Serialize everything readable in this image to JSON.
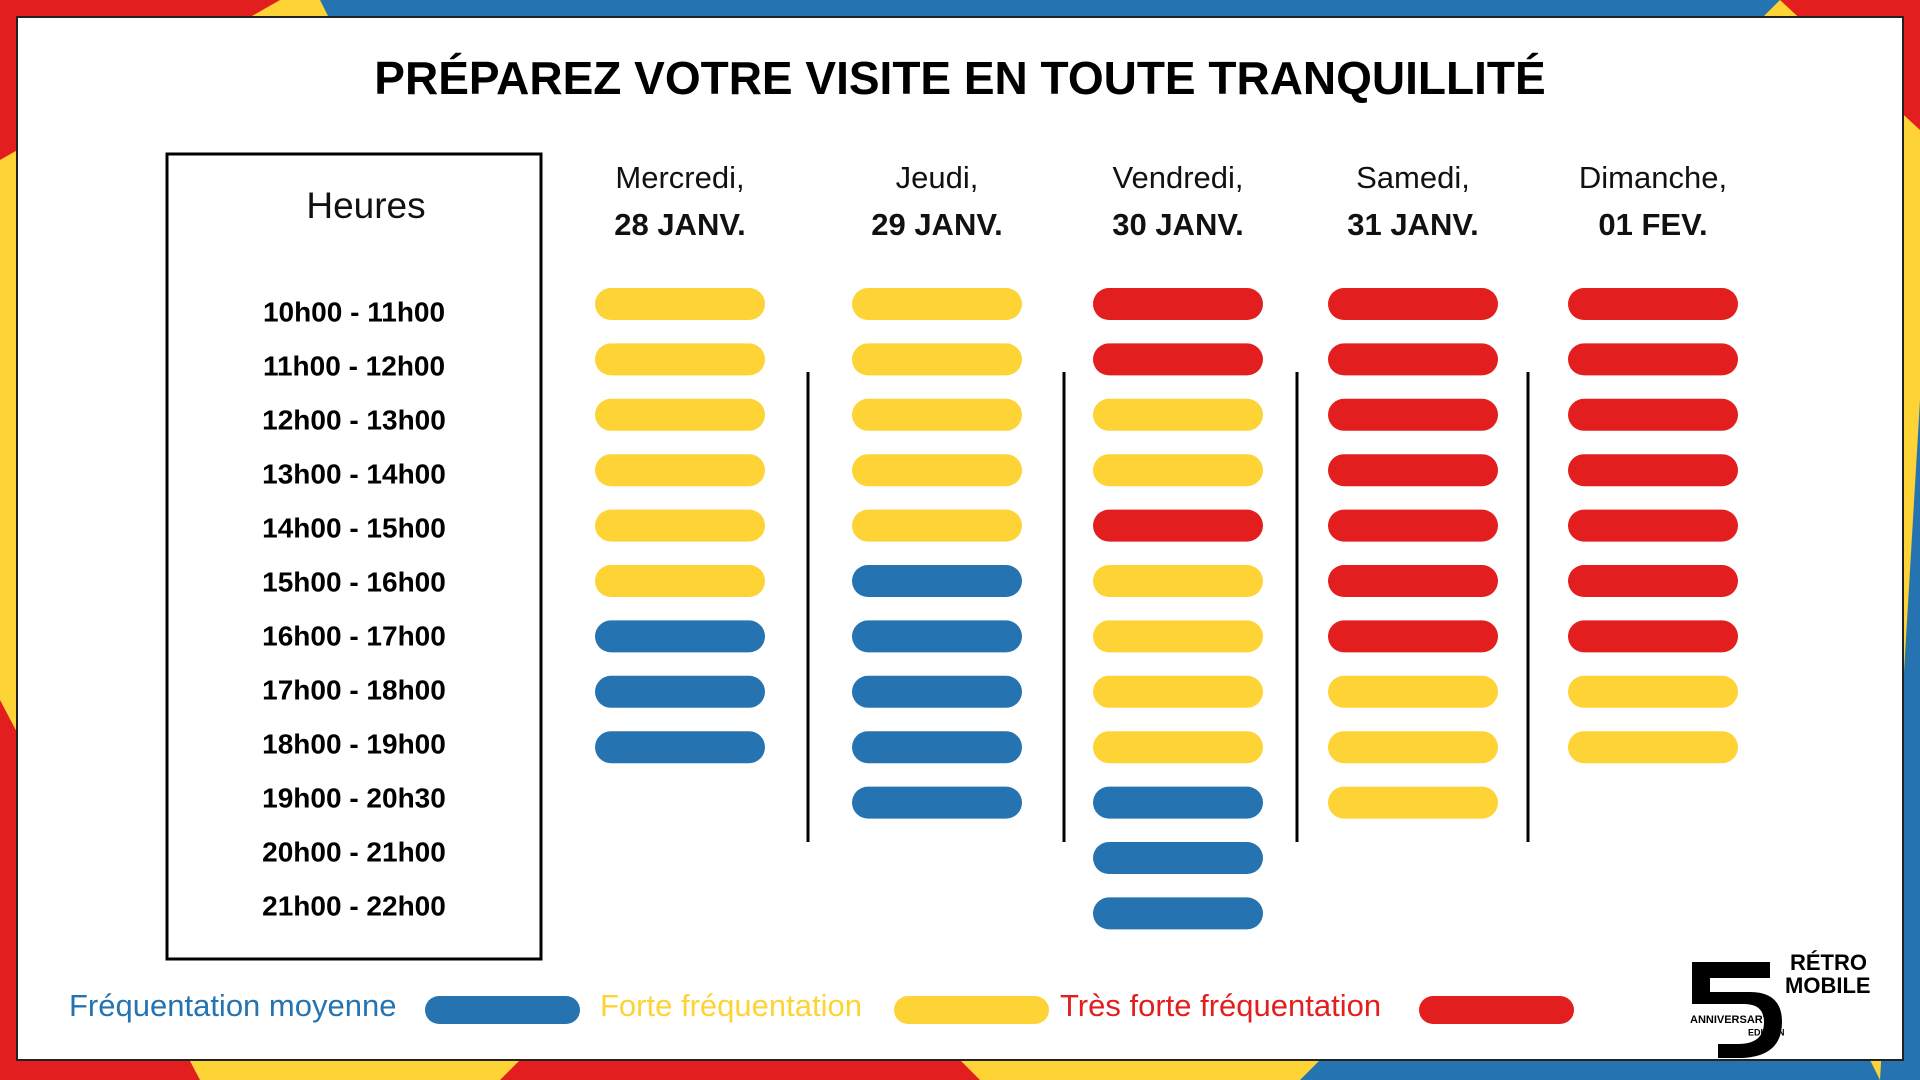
{
  "header": {
    "title": "PRÉPAREZ VOTRE VISITE EN TOUTE TRANQUILLITÉ"
  },
  "hours": {
    "title": "Heures",
    "slots": [
      "10h00 - 11h00",
      "11h00 - 12h00",
      "12h00 - 13h00",
      "13h00 - 14h00",
      "14h00 - 15h00",
      "15h00 - 16h00",
      "16h00 - 17h00",
      "17h00 - 18h00",
      "18h00 - 19h00",
      "19h00 - 20h30",
      "20h00 - 21h00",
      "21h00 - 22h00"
    ]
  },
  "days": [
    {
      "name": "Mercredi,",
      "date": "28 JANV.",
      "slots": [
        "#fdd335",
        "#fdd335",
        "#fdd335",
        "#fdd335",
        "#fdd335",
        "#fdd335",
        "#2574b1",
        "#2574b1",
        "#2574b1"
      ]
    },
    {
      "name": "Jeudi,",
      "date": "29 JANV.",
      "slots": [
        "#fdd335",
        "#fdd335",
        "#fdd335",
        "#fdd335",
        "#fdd335",
        "#2574b1",
        "#2574b1",
        "#2574b1",
        "#2574b1",
        "#2574b1"
      ]
    },
    {
      "name": "Vendredi,",
      "date": "30 JANV.",
      "slots": [
        "#e31e1e",
        "#e31e1e",
        "#fdd335",
        "#fdd335",
        "#e31e1e",
        "#fdd335",
        "#fdd335",
        "#fdd335",
        "#fdd335",
        "#2574b1",
        "#2574b1",
        "#2574b1"
      ]
    },
    {
      "name": "Samedi,",
      "date": "31 JANV.",
      "slots": [
        "#e31e1e",
        "#e31e1e",
        "#e31e1e",
        "#e31e1e",
        "#e31e1e",
        "#e31e1e",
        "#e31e1e",
        "#fdd335",
        "#fdd335",
        "#fdd335"
      ]
    },
    {
      "name": "Dimanche,",
      "date": "01 FEV.",
      "slots": [
        "#e31e1e",
        "#e31e1e",
        "#e31e1e",
        "#e31e1e",
        "#e31e1e",
        "#e31e1e",
        "#e31e1e",
        "#fdd335",
        "#fdd335"
      ]
    }
  ],
  "legend": [
    {
      "label": "Fréquentation moyenne",
      "color": "#2574b1"
    },
    {
      "label": "Forte fréquentation",
      "color": "#fdd335"
    },
    {
      "label": "Très forte fréquentation",
      "color": "#e31e1e"
    }
  ],
  "logo": {
    "line1": "RÉTRO",
    "line2": "MOBILE",
    "line3": "ANNIVERSARY",
    "line4": "EDITION"
  }
}
